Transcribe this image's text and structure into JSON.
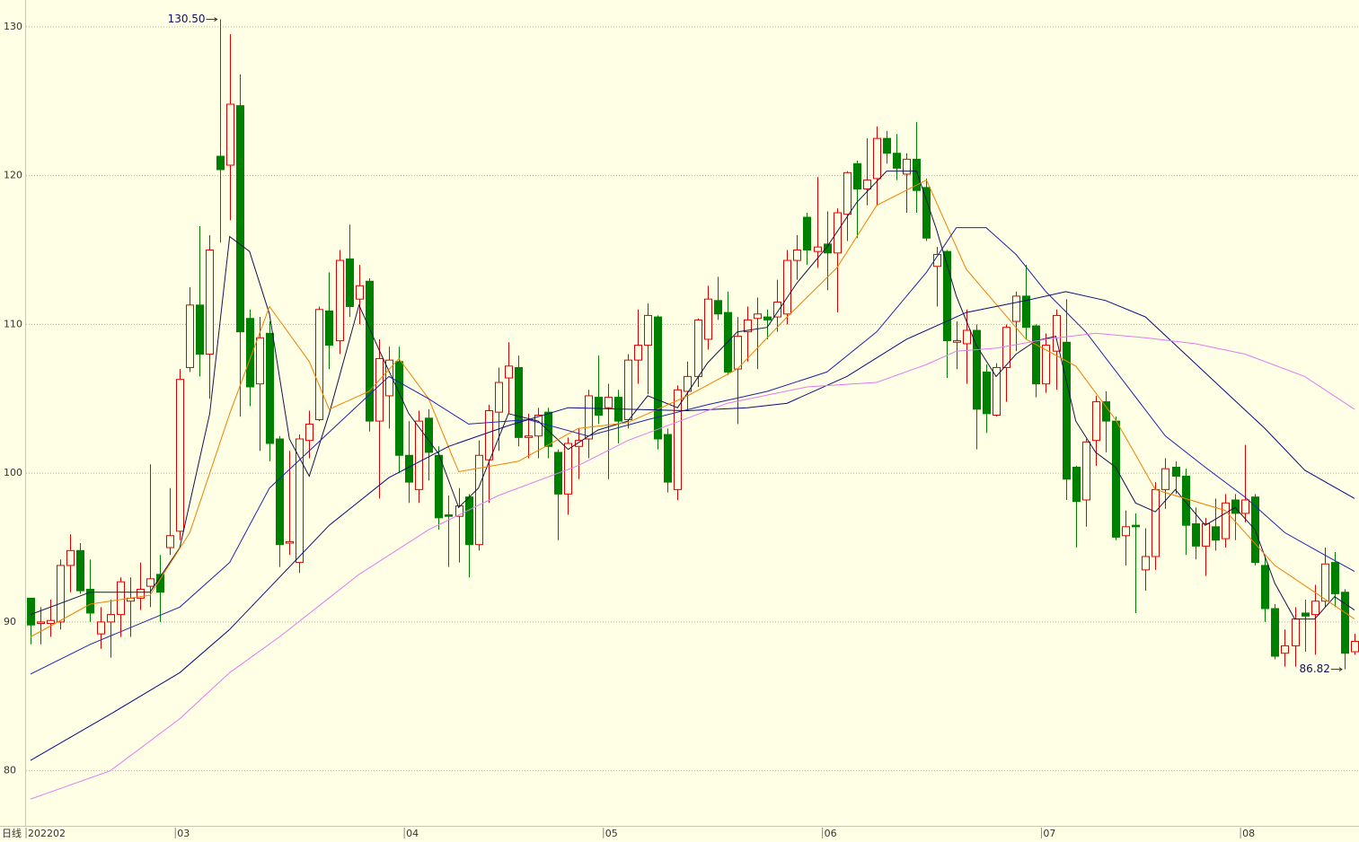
{
  "chart_data": {
    "type": "candlestick",
    "period_label": "日线",
    "categories": [
      "202202",
      null,
      null,
      null,
      null,
      null,
      null,
      null,
      null,
      null,
      null,
      null,
      null,
      null,
      null,
      "03",
      null,
      null,
      null,
      null,
      null,
      null,
      null,
      null,
      null,
      null,
      null,
      null,
      null,
      null,
      null,
      null,
      null,
      null,
      null,
      null,
      null,
      null,
      "04",
      null,
      null,
      null,
      null,
      null,
      null,
      null,
      null,
      null,
      null,
      null,
      null,
      null,
      null,
      null,
      null,
      null,
      null,
      null,
      "05",
      null,
      null,
      null,
      null,
      null,
      null,
      null,
      null,
      null,
      null,
      null,
      null,
      null,
      null,
      null,
      null,
      null,
      null,
      null,
      null,
      null,
      "06",
      null,
      null,
      null,
      null,
      null,
      null,
      null,
      null,
      null,
      null,
      null,
      null,
      null,
      null,
      null,
      null,
      null,
      null,
      null,
      null,
      null,
      "07",
      null,
      null,
      null,
      null,
      null,
      null,
      null,
      null,
      null,
      null,
      null,
      null,
      null,
      null,
      null,
      null,
      null,
      null,
      null,
      "08",
      null,
      null,
      null,
      null,
      null,
      null,
      null,
      null,
      null,
      null,
      null
    ],
    "open": [
      91.6,
      89.9,
      89.9,
      90,
      93.8,
      94.8,
      92.2,
      89.2,
      90,
      90.5,
      91.4,
      91.6,
      92.4,
      93.2,
      95,
      96.1,
      107.1,
      111.3,
      108,
      121.3,
      120.7,
      124.7,
      110.4,
      106,
      109.4,
      102.3,
      95.3,
      94,
      102.2,
      103.6,
      110.9,
      108.9,
      114.4,
      111.7,
      112.9,
      103.5,
      105.2,
      107.5,
      101.2,
      98.9,
      103.7,
      101.2,
      97.2,
      97.1,
      98.4,
      95.2,
      100.9,
      104.1,
      106.4,
      107.1,
      102.4,
      102.5,
      104.1,
      101.4,
      98.6,
      101.8,
      102.3,
      105.1,
      104.4,
      105.1,
      103.6,
      107.6,
      108.6,
      110.5,
      102.6,
      98.9,
      105.5,
      106.5,
      109,
      111.6,
      110.8,
      107,
      109.5,
      110.4,
      110.5,
      110.5,
      110.7,
      114.3,
      117.2,
      114.9,
      115.4,
      114.8,
      117.4,
      120.8,
      119.1,
      119.8,
      122.5,
      121.5,
      120.1,
      121.1,
      119.2,
      113.9,
      114.9,
      108.8,
      108.7,
      109.6,
      106.8,
      103.9,
      107.1,
      110.2,
      111.9,
      109.9,
      106,
      108.2,
      108.8,
      100.4,
      98.2,
      102.2,
      104.8,
      103.5,
      95.8,
      96.5,
      93.5,
      94.4,
      98.9,
      100.4,
      99.8,
      96.6,
      95.1,
      96.4,
      95.6,
      98.2,
      97.3,
      98.4,
      93.8,
      90.9,
      87.9,
      88.4,
      90.6,
      90.5,
      91.4,
      94,
      92,
      88
    ],
    "high": [
      91.6,
      91,
      91.5,
      94.2,
      95.9,
      95.3,
      94.2,
      91,
      91.5,
      93,
      93,
      94,
      100.6,
      94.5,
      99,
      107,
      112.5,
      116.6,
      116,
      130.5,
      129.5,
      126.8,
      111,
      110.5,
      110.2,
      102.5,
      101.5,
      102.6,
      104.2,
      111.2,
      113.5,
      115,
      116.7,
      114,
      113.1,
      109,
      108.5,
      108.5,
      103.5,
      104.2,
      104.3,
      101.8,
      98.5,
      99,
      98.6,
      102.2,
      104.6,
      107.1,
      108.8,
      107.9,
      104,
      104.4,
      104.4,
      101.6,
      102.4,
      103,
      105.6,
      107.9,
      106,
      105.6,
      108,
      111,
      111.4,
      110.6,
      103,
      105.9,
      107.5,
      110.4,
      112.6,
      113.2,
      112.2,
      110.5,
      111.2,
      111.8,
      111,
      113,
      115,
      116,
      117.5,
      119.9,
      117.6,
      117.8,
      120.3,
      121,
      122.5,
      123.3,
      123,
      122.8,
      121.5,
      123.6,
      119.8,
      115.2,
      115,
      110.2,
      111,
      110,
      107.3,
      107.4,
      110,
      112.2,
      114,
      110,
      109.4,
      111,
      111.7,
      100.5,
      102.3,
      105.2,
      105.5,
      103.8,
      97.5,
      97.3,
      96.3,
      99.4,
      101,
      100.8,
      100.3,
      97.7,
      97,
      98.3,
      98.6,
      98.6,
      101.9,
      98.6,
      94.4,
      91.2,
      89.5,
      91,
      91.5,
      92.5,
      95,
      94.7,
      92.2,
      89.2
    ],
    "low": [
      88.5,
      88.5,
      89,
      89.5,
      92,
      91.9,
      90,
      88.2,
      87.6,
      89,
      89,
      90.8,
      91,
      90,
      94.5,
      95.5,
      106.8,
      106.5,
      105,
      115.5,
      117,
      103.8,
      104.5,
      101.5,
      100.8,
      93.7,
      94.5,
      93.3,
      101,
      103.5,
      107,
      108,
      110.5,
      110,
      102.8,
      98.3,
      103,
      100,
      98,
      98,
      99.5,
      96.2,
      93.7,
      94,
      93,
      94.8,
      98,
      101.5,
      104,
      101.8,
      101,
      101,
      101,
      95.5,
      97.2,
      99.6,
      101,
      103.3,
      99.6,
      102,
      103,
      106,
      105.3,
      101.6,
      98.7,
      98.2,
      104.2,
      105.8,
      108.3,
      110.3,
      106.6,
      103.3,
      107.5,
      107,
      109,
      109.5,
      110,
      113,
      114,
      113.8,
      112.3,
      110.8,
      115.6,
      115.8,
      118,
      118,
      120.8,
      119.7,
      117.5,
      117.5,
      115.6,
      111.2,
      106.4,
      107,
      106,
      101.6,
      102.7,
      103.8,
      104.8,
      108.2,
      109,
      105.1,
      105.4,
      105.6,
      98.2,
      95,
      96.4,
      100.5,
      101.4,
      95.5,
      93.8,
      90.6,
      92.1,
      93.5,
      97.6,
      98.6,
      94.5,
      94.2,
      93.1,
      94.8,
      95,
      95.5,
      96.7,
      93.8,
      90,
      87.5,
      87,
      87,
      88,
      87.8,
      91,
      91,
      86.82,
      87.8
    ],
    "close": [
      89.8,
      90.0,
      90.1,
      93.8,
      94.8,
      92.1,
      90.6,
      90,
      90.5,
      92.7,
      91.6,
      92.2,
      92.9,
      92,
      95.8,
      106.3,
      111.3,
      108,
      115,
      120.4,
      124.8,
      109.5,
      105.8,
      109.1,
      102,
      95.2,
      95.4,
      102.3,
      103.3,
      111,
      108.6,
      114.3,
      111.2,
      112.6,
      103.5,
      107.7,
      107.6,
      101.2,
      99.4,
      103.5,
      101.4,
      97,
      97.1,
      97.8,
      95.2,
      101.2,
      104.2,
      106.1,
      107.2,
      102.4,
      102.5,
      103.9,
      101.8,
      98.6,
      102,
      102.2,
      105.2,
      103.9,
      105.1,
      103.5,
      107.6,
      108.6,
      110.6,
      102.3,
      99.4,
      105.6,
      106.5,
      110.3,
      111.7,
      110.7,
      106.8,
      109.2,
      110.3,
      110.7,
      110.3,
      111.5,
      114.3,
      115,
      115,
      115.2,
      114.8,
      117.5,
      120.2,
      119.1,
      119.7,
      122.5,
      121.5,
      120.5,
      121.1,
      119,
      115.8,
      114.7,
      108.9,
      108.9,
      109.6,
      104.3,
      104,
      107.1,
      109.8,
      111.9,
      109.8,
      106,
      108.6,
      110.6,
      99.6,
      98.1,
      102.1,
      104.8,
      103.5,
      95.7,
      96.4,
      96.4,
      94.4,
      98.9,
      100.3,
      99.8,
      96.5,
      95.1,
      96.6,
      95.5,
      98,
      97.3,
      98.2,
      94,
      90.9,
      87.7,
      88.4,
      90.2,
      90.4,
      91.4,
      93.9,
      91.9,
      87.9,
      88.7
    ],
    "up_color": "#e00000",
    "down_color": "#008000",
    "series": [
      {
        "color": "#14144a",
        "x": [
          0,
          6,
          12,
          15,
          18,
          20,
          22,
          24,
          26,
          28,
          30,
          33,
          35,
          38,
          41,
          43,
          45,
          48,
          51,
          54,
          57,
          60,
          62,
          65,
          68,
          71,
          74,
          77,
          80,
          83,
          86,
          89,
          91,
          93,
          95,
          97,
          99,
          101,
          103,
          105,
          107,
          109,
          111,
          113,
          115,
          118,
          121,
          123,
          125,
          127,
          129,
          131,
          133
        ],
        "values": [
          90.5,
          92,
          92,
          95,
          104,
          115.9,
          114.9,
          110.7,
          102.3,
          99.8,
          104,
          111.3,
          108.3,
          104,
          101.3,
          97.7,
          99,
          104,
          103.5,
          101.6,
          102.9,
          103.5,
          105.2,
          104.4,
          107.4,
          109.5,
          109.8,
          112.8,
          115.2,
          118.2,
          120.3,
          120.3,
          116.4,
          111.9,
          108.6,
          106.5,
          108,
          108.9,
          109.2,
          103.5,
          101.4,
          100.4,
          98,
          97.4,
          98.9,
          96.5,
          97.7,
          96.2,
          92.6,
          90.2,
          90.2,
          91.7,
          90.8
        ]
      },
      {
        "color": "#f08000",
        "x": [
          0,
          6,
          12,
          16,
          20,
          24,
          28,
          30,
          34,
          37,
          40,
          43,
          49,
          55,
          60,
          66,
          71,
          76,
          81,
          85,
          90,
          94,
          100,
          105,
          109,
          113,
          120,
          125,
          133
        ],
        "values": [
          89,
          91.2,
          91.8,
          96,
          104,
          111.2,
          107.5,
          104.3,
          105.5,
          107.7,
          105,
          100.1,
          100.8,
          103,
          103.4,
          105.2,
          107,
          110.5,
          113.8,
          118,
          119.7,
          113.7,
          109,
          107.2,
          103.6,
          98.9,
          97.5,
          93.8,
          90.2
        ]
      },
      {
        "color": "#2020b0",
        "x": [
          0,
          6,
          15,
          20,
          24,
          28,
          32,
          36,
          40,
          44,
          50,
          56,
          62,
          68,
          74,
          80,
          85,
          90,
          93,
          96,
          99,
          102,
          106,
          110,
          114,
          118,
          122,
          126,
          130,
          133
        ],
        "values": [
          86.5,
          88.5,
          91,
          94,
          99,
          101.5,
          104,
          106.5,
          105,
          103.3,
          103.6,
          102.5,
          103.6,
          104.6,
          105.5,
          106.8,
          109.5,
          113.5,
          116.5,
          116.5,
          114.7,
          112.2,
          109.5,
          106,
          102.5,
          100.4,
          98.4,
          96,
          94.5,
          93.4
        ]
      },
      {
        "color": "#0a0a80",
        "x": [
          0,
          8,
          15,
          20,
          25,
          30,
          36,
          42,
          48,
          54,
          60,
          66,
          72,
          76,
          82,
          88,
          94,
          100,
          104,
          108,
          112,
          116,
          120,
          124,
          128,
          133
        ],
        "values": [
          80.7,
          83.8,
          86.6,
          89.5,
          93,
          96.5,
          99.7,
          101.8,
          103.2,
          104.4,
          104.3,
          104.2,
          104.4,
          104.7,
          106.5,
          109,
          110.8,
          111.6,
          112.2,
          111.6,
          110.5,
          108,
          105.5,
          103,
          100.2,
          98.3
        ]
      },
      {
        "color": "#e07af0",
        "x": [
          0,
          8,
          15,
          20,
          25,
          33,
          40,
          47,
          55,
          60,
          70,
          78,
          85,
          90,
          93,
          97,
          102,
          107,
          112,
          117,
          122,
          128,
          133
        ],
        "values": [
          78.1,
          80,
          83.5,
          86.6,
          89,
          93.2,
          96.2,
          98.5,
          100.5,
          102.2,
          104.7,
          105.8,
          106.1,
          107.3,
          108.2,
          108.4,
          109,
          109.4,
          109.1,
          108.7,
          108,
          106.5,
          104.3
        ]
      }
    ],
    "annotations": [
      {
        "text": "130.50",
        "value": 130.5,
        "index": 19
      },
      {
        "text": "86.82",
        "value": 86.82,
        "index": 132
      }
    ],
    "ylim": [
      76.3,
      131.8
    ],
    "yticks": [
      80,
      90,
      100,
      110,
      120,
      130
    ],
    "grid": true
  }
}
